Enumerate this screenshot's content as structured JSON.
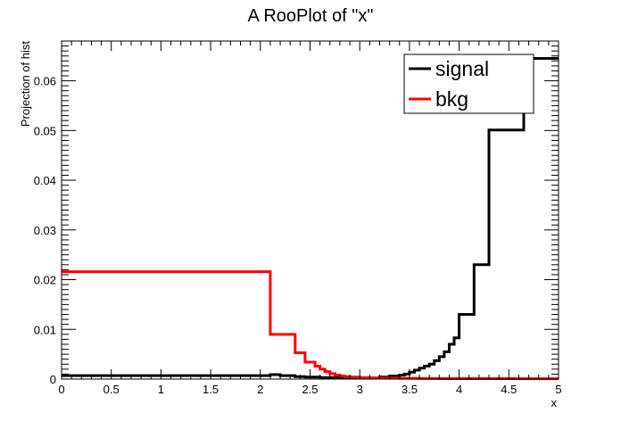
{
  "chart_data": {
    "type": "line",
    "title": "A RooPlot of \"x\"",
    "xlabel": "x",
    "ylabel": "Projection of hist",
    "xlim": [
      0,
      5
    ],
    "ylim": [
      0,
      0.068
    ],
    "x_ticks": [
      0,
      0.5,
      1,
      1.5,
      2,
      2.5,
      3,
      3.5,
      4,
      4.5,
      5
    ],
    "x_tick_labels": [
      "0",
      "0.5",
      "1",
      "1.5",
      "2",
      "2.5",
      "3",
      "3.5",
      "4",
      "4.5",
      "5"
    ],
    "y_ticks": [
      0,
      0.01,
      0.02,
      0.03,
      0.04,
      0.05,
      0.06
    ],
    "y_tick_labels": [
      "0",
      "0.01",
      "0.02",
      "0.03",
      "0.04",
      "0.05",
      "0.06"
    ],
    "grid": false,
    "legend_position": "top-right",
    "series": [
      {
        "name": "signal",
        "color": "#000000",
        "style": "step",
        "x": [
          0,
          2.1,
          2.2,
          2.35,
          2.45,
          2.6,
          2.8,
          3.0,
          3.2,
          3.3,
          3.4,
          3.45,
          3.5,
          3.55,
          3.6,
          3.65,
          3.7,
          3.75,
          3.8,
          3.85,
          3.9,
          3.95,
          4.0,
          4.05,
          4.15,
          4.3,
          4.45,
          4.65,
          4.75,
          5.0
        ],
        "y": [
          0.0007,
          0.0009,
          0.0007,
          0.0005,
          0.0004,
          0.0003,
          0.0002,
          0.0002,
          0.0004,
          0.0006,
          0.0008,
          0.001,
          0.0014,
          0.0018,
          0.0022,
          0.0026,
          0.003,
          0.0037,
          0.0045,
          0.0055,
          0.007,
          0.0083,
          0.013,
          0.013,
          0.023,
          0.0501,
          0.0501,
          0.0645,
          0.0645,
          0.0645
        ]
      },
      {
        "name": "bkg",
        "color": "#ff0000",
        "style": "step",
        "x": [
          0,
          2.1,
          2.2,
          2.35,
          2.45,
          2.55,
          2.6,
          2.65,
          2.7,
          2.75,
          2.8,
          2.85,
          2.9,
          3.0,
          3.1,
          3.2,
          3.4,
          3.6,
          3.8,
          4.2,
          4.6,
          5.0
        ],
        "y": [
          0.0216,
          0.009,
          0.009,
          0.0053,
          0.0034,
          0.0026,
          0.002,
          0.0015,
          0.0011,
          0.0008,
          0.0006,
          0.0005,
          0.0004,
          0.0003,
          0.00025,
          0.0002,
          0.00015,
          0.00012,
          0.0001,
          8e-05,
          6e-05,
          6e-05
        ]
      }
    ]
  }
}
